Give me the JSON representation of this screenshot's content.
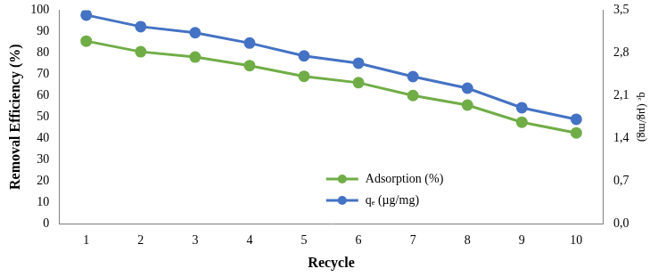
{
  "chart_data": {
    "type": "line",
    "categories": [
      "1",
      "2",
      "3",
      "4",
      "5",
      "6",
      "7",
      "8",
      "9",
      "10"
    ],
    "x_label": "Recycle",
    "y_label": "Removal Efficiency (%)",
    "y2_label": "qₑ (µg/mg)",
    "ylim": [
      0,
      100
    ],
    "yticks": [
      0,
      10,
      20,
      30,
      40,
      50,
      60,
      70,
      80,
      90,
      100
    ],
    "y2lim": [
      0,
      3.5
    ],
    "y2ticks": [
      {
        "value": 0,
        "label": "0,0"
      },
      {
        "value": 0.7,
        "label": "0,7"
      },
      {
        "value": 1.4,
        "label": "1,4"
      },
      {
        "value": 2.1,
        "label": "2,1"
      },
      {
        "value": 2.8,
        "label": "2,8"
      },
      {
        "value": 3.5,
        "label": "3,5"
      }
    ],
    "grid": false,
    "legend": "lower center",
    "series": [
      {
        "name": "Adsorption (%)",
        "color": "#70ad47",
        "marker": "circle",
        "values": [
          85.5,
          80.5,
          78,
          74,
          69,
          66,
          60,
          55.5,
          47.5,
          42.5
        ]
      },
      {
        "name": "qₑ (µg/mg)",
        "color": "#4472c4",
        "marker": "circle",
        "axis": "y2",
        "values": [
          3.42,
          3.23,
          3.13,
          2.96,
          2.75,
          2.63,
          2.41,
          2.22,
          1.9,
          1.71
        ]
      }
    ]
  }
}
